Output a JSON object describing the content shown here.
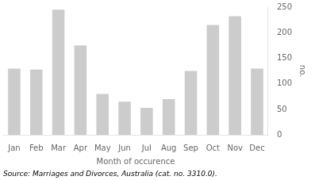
{
  "chart_data": {
    "type": "bar",
    "categories": [
      "Jan",
      "Feb",
      "Mar",
      "Apr",
      "May",
      "Jun",
      "Jul",
      "Aug",
      "Sep",
      "Oct",
      "Nov",
      "Dec"
    ],
    "values": [
      130,
      128,
      245,
      175,
      80,
      65,
      53,
      70,
      125,
      215,
      232,
      130
    ],
    "color": "#cccccc",
    "xlabel": "Month of occurence",
    "ylabel": "no.",
    "ylim": [
      0,
      250
    ],
    "yticks": [
      0,
      50,
      100,
      150,
      200,
      250
    ],
    "grid": false,
    "source": "Source: Marriages and Divorces, Australia (cat. no. 3310.0)."
  }
}
